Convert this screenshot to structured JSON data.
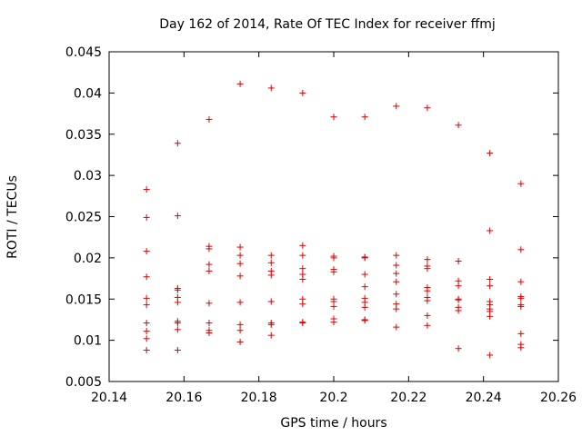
{
  "chart_data": {
    "type": "scatter",
    "title": "Day 162 of 2014, Rate Of TEC Index for receiver ffmj",
    "xlabel": "GPS time / hours",
    "ylabel": "ROTI / TECUs",
    "xlim": [
      20.14,
      20.26
    ],
    "ylim": [
      0.005,
      0.045
    ],
    "xticks": [
      20.14,
      20.16,
      20.18,
      20.2,
      20.22,
      20.24,
      20.26
    ],
    "xtick_labels": [
      "20.14",
      "20.16",
      "20.18",
      "20.2",
      "20.22",
      "20.24",
      "20.26"
    ],
    "yticks": [
      0.005,
      0.01,
      0.015,
      0.02,
      0.025,
      0.03,
      0.035,
      0.04,
      0.045
    ],
    "ytick_labels": [
      "0.005",
      "0.01",
      "0.015",
      "0.02",
      "0.025",
      "0.03",
      "0.035",
      "0.04",
      "0.045"
    ],
    "marker": "plus",
    "color": "#e00000",
    "series": [
      {
        "name": "ROTI",
        "points": [
          [
            20.15,
            0.0283
          ],
          [
            20.15,
            0.0249
          ],
          [
            20.15,
            0.0208
          ],
          [
            20.15,
            0.0177
          ],
          [
            20.15,
            0.0151
          ],
          [
            20.15,
            0.0143
          ],
          [
            20.15,
            0.0121
          ],
          [
            20.15,
            0.0111
          ],
          [
            20.15,
            0.0102
          ],
          [
            20.15,
            0.0088
          ],
          [
            20.1583,
            0.0339
          ],
          [
            20.1583,
            0.0251
          ],
          [
            20.1583,
            0.0163
          ],
          [
            20.1583,
            0.0161
          ],
          [
            20.1583,
            0.0152
          ],
          [
            20.1583,
            0.0146
          ],
          [
            20.1583,
            0.0123
          ],
          [
            20.1583,
            0.0121
          ],
          [
            20.1583,
            0.0113
          ],
          [
            20.1583,
            0.0088
          ],
          [
            20.1667,
            0.0368
          ],
          [
            20.1667,
            0.0214
          ],
          [
            20.1667,
            0.0211
          ],
          [
            20.1667,
            0.0192
          ],
          [
            20.1667,
            0.0184
          ],
          [
            20.1667,
            0.0145
          ],
          [
            20.1667,
            0.0121
          ],
          [
            20.1667,
            0.0112
          ],
          [
            20.1667,
            0.0109
          ],
          [
            20.175,
            0.0411
          ],
          [
            20.175,
            0.0213
          ],
          [
            20.175,
            0.0203
          ],
          [
            20.175,
            0.0193
          ],
          [
            20.175,
            0.0178
          ],
          [
            20.175,
            0.0146
          ],
          [
            20.175,
            0.0119
          ],
          [
            20.175,
            0.0112
          ],
          [
            20.175,
            0.0098
          ],
          [
            20.1833,
            0.0406
          ],
          [
            20.1833,
            0.0203
          ],
          [
            20.1833,
            0.0194
          ],
          [
            20.1833,
            0.0184
          ],
          [
            20.1833,
            0.0179
          ],
          [
            20.1833,
            0.0147
          ],
          [
            20.1833,
            0.0121
          ],
          [
            20.1833,
            0.0119
          ],
          [
            20.1833,
            0.0106
          ],
          [
            20.1917,
            0.04
          ],
          [
            20.1917,
            0.0215
          ],
          [
            20.1917,
            0.0203
          ],
          [
            20.1917,
            0.0187
          ],
          [
            20.1917,
            0.018
          ],
          [
            20.1917,
            0.0174
          ],
          [
            20.1917,
            0.015
          ],
          [
            20.1917,
            0.0144
          ],
          [
            20.1917,
            0.0122
          ],
          [
            20.1917,
            0.0121
          ],
          [
            20.2,
            0.0371
          ],
          [
            20.2,
            0.0202
          ],
          [
            20.2,
            0.02
          ],
          [
            20.2,
            0.0186
          ],
          [
            20.2,
            0.0183
          ],
          [
            20.2,
            0.015
          ],
          [
            20.2,
            0.0147
          ],
          [
            20.2,
            0.0141
          ],
          [
            20.2,
            0.0126
          ],
          [
            20.2,
            0.0122
          ],
          [
            20.2083,
            0.0371
          ],
          [
            20.2083,
            0.0201
          ],
          [
            20.2083,
            0.02
          ],
          [
            20.2083,
            0.018
          ],
          [
            20.2083,
            0.0165
          ],
          [
            20.2083,
            0.0151
          ],
          [
            20.2083,
            0.0146
          ],
          [
            20.2083,
            0.014
          ],
          [
            20.2083,
            0.0125
          ],
          [
            20.2083,
            0.0124
          ],
          [
            20.2167,
            0.0384
          ],
          [
            20.2167,
            0.0203
          ],
          [
            20.2167,
            0.0191
          ],
          [
            20.2167,
            0.0181
          ],
          [
            20.2167,
            0.0171
          ],
          [
            20.2167,
            0.0156
          ],
          [
            20.2167,
            0.0144
          ],
          [
            20.2167,
            0.0138
          ],
          [
            20.2167,
            0.0116
          ],
          [
            20.225,
            0.0382
          ],
          [
            20.225,
            0.0198
          ],
          [
            20.225,
            0.019
          ],
          [
            20.225,
            0.0187
          ],
          [
            20.225,
            0.0164
          ],
          [
            20.225,
            0.016
          ],
          [
            20.225,
            0.0152
          ],
          [
            20.225,
            0.0148
          ],
          [
            20.225,
            0.013
          ],
          [
            20.225,
            0.0118
          ],
          [
            20.2333,
            0.0361
          ],
          [
            20.2333,
            0.0196
          ],
          [
            20.2333,
            0.0172
          ],
          [
            20.2333,
            0.0166
          ],
          [
            20.2333,
            0.015
          ],
          [
            20.2333,
            0.0149
          ],
          [
            20.2333,
            0.014
          ],
          [
            20.2333,
            0.0136
          ],
          [
            20.2333,
            0.009
          ],
          [
            20.2417,
            0.0327
          ],
          [
            20.2417,
            0.0233
          ],
          [
            20.2417,
            0.0174
          ],
          [
            20.2417,
            0.0166
          ],
          [
            20.2417,
            0.0147
          ],
          [
            20.2417,
            0.0143
          ],
          [
            20.2417,
            0.0138
          ],
          [
            20.2417,
            0.0135
          ],
          [
            20.2417,
            0.0129
          ],
          [
            20.2417,
            0.0082
          ],
          [
            20.25,
            0.029
          ],
          [
            20.25,
            0.021
          ],
          [
            20.25,
            0.0171
          ],
          [
            20.25,
            0.0153
          ],
          [
            20.25,
            0.0151
          ],
          [
            20.25,
            0.0143
          ],
          [
            20.25,
            0.0141
          ],
          [
            20.25,
            0.0108
          ],
          [
            20.25,
            0.0095
          ],
          [
            20.25,
            0.0091
          ]
        ]
      }
    ]
  }
}
